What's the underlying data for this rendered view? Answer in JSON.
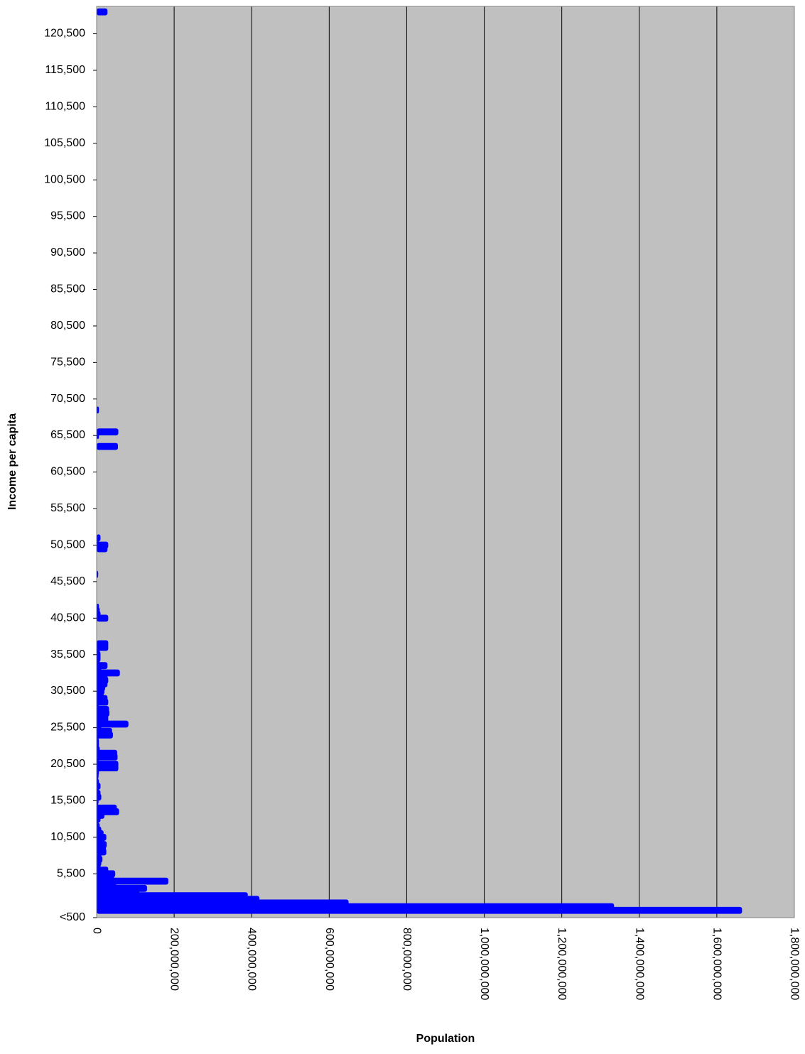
{
  "chart_data": {
    "type": "bar",
    "orientation": "horizontal",
    "title": "",
    "xlabel": "Population",
    "ylabel": "Income per capita",
    "xlim": [
      0,
      1800000000
    ],
    "x_ticks": [
      "0",
      "200,000,000",
      "400,000,000",
      "600,000,000",
      "800,000,000",
      "1,000,000,000",
      "1,200,000,000",
      "1,400,000,000",
      "1,600,000,000",
      "1,800,000,000"
    ],
    "ylim": [
      -500,
      124250
    ],
    "y_ticks": [
      "<500",
      "5,500",
      "10,500",
      "15,500",
      "20,500",
      "25,500",
      "30,500",
      "35,500",
      "40,500",
      "45,500",
      "50,500",
      "55,500",
      "60,500",
      "65,500",
      "70,500",
      "75,500",
      "80,500",
      "85,500",
      "90,500",
      "95,500",
      "100,500",
      "105,500",
      "110,500",
      "115,500",
      "120,500"
    ],
    "grid": "vertical lines",
    "bar_color": "#0000ff",
    "plot_background": "#c0c0c0",
    "series": [
      {
        "income": [
          500,
          1000,
          1500,
          2000,
          2500,
          3000,
          3500,
          4000,
          4500,
          5000,
          5500,
          6000,
          6500,
          7000,
          7500,
          8000,
          8500,
          9000,
          9500,
          10000,
          10500,
          11000,
          11500,
          12000,
          12500,
          13000,
          13500,
          14000,
          14500,
          15000,
          15500,
          16000,
          16500,
          17000,
          17500,
          18000,
          18500,
          19000,
          19500,
          20000,
          20500,
          21000,
          21500,
          22000,
          22500,
          23000,
          23500,
          24000,
          24500,
          25000,
          25500,
          26000,
          26500,
          27000,
          27500,
          28000,
          28500,
          29000,
          29500,
          30000,
          30500,
          31000,
          31500,
          32000,
          32500,
          33000,
          33500,
          34000,
          34500,
          35000,
          35500,
          36000,
          36500,
          37000,
          40500,
          41000,
          41500,
          42000,
          46500,
          50000,
          50500,
          51000,
          51500,
          64000,
          65500,
          66000,
          69000,
          123500
        ],
        "population": [
          1665000000,
          1335000000,
          650000000,
          420000000,
          390000000,
          110000000,
          130000000,
          50000000,
          185000000,
          45000000,
          48000000,
          30000000,
          10000000,
          12000000,
          15000000,
          12000000,
          25000000,
          24000000,
          26000000,
          20000000,
          25000000,
          18000000,
          12000000,
          8000000,
          5000000,
          10000000,
          20000000,
          58000000,
          52000000,
          4000000,
          5000000,
          12000000,
          10000000,
          6000000,
          10000000,
          6000000,
          4000000,
          5000000,
          6000000,
          56000000,
          56000000,
          6000000,
          54000000,
          53000000,
          8000000,
          6000000,
          6000000,
          5000000,
          42000000,
          40000000,
          12000000,
          82000000,
          30000000,
          30000000,
          33000000,
          32000000,
          6000000,
          30000000,
          28000000,
          18000000,
          20000000,
          22000000,
          28000000,
          30000000,
          28000000,
          60000000,
          12000000,
          28000000,
          8000000,
          10000000,
          10000000,
          8000000,
          30000000,
          30000000,
          30000000,
          10000000,
          8000000,
          6000000,
          4000000,
          28000000,
          30000000,
          6000000,
          10000000,
          55000000,
          6000000,
          56000000,
          6000000,
          28000000
        ]
      }
    ]
  }
}
